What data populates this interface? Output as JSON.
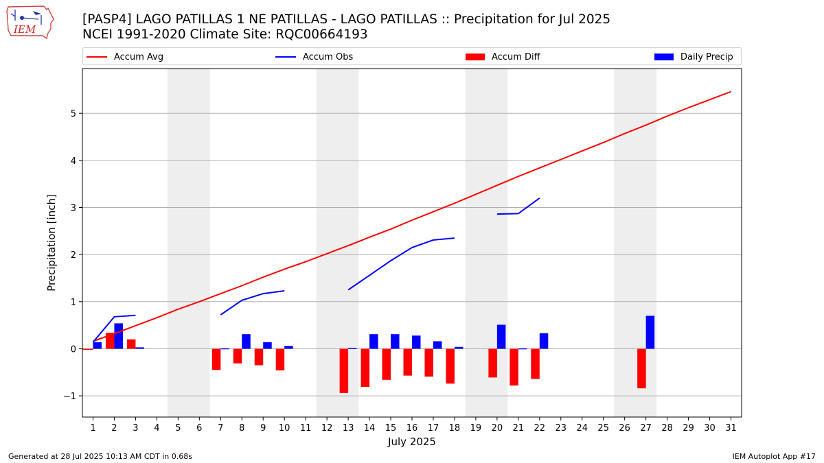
{
  "header": {
    "logo_text": "IEM",
    "title_line1": "[PASP4] LAGO PATILLAS 1 NE PATILLAS - LAGO PATILLAS :: Precipitation for Jul 2025",
    "title_line2": "NCEI 1991-2020 Climate Site: RQC00664193"
  },
  "legend": [
    {
      "label": "Accum Avg",
      "kind": "line",
      "color": "#ff0000"
    },
    {
      "label": "Accum Obs",
      "kind": "line",
      "color": "#0000ff"
    },
    {
      "label": "Accum Diff",
      "kind": "bar",
      "color": "#ff0000"
    },
    {
      "label": "Daily Precip",
      "kind": "bar",
      "color": "#0000ff"
    }
  ],
  "footer": {
    "generated": "Generated at 28 Jul 2025 10:13 AM CDT in 0.68s",
    "app": "IEM Autoplot App #17"
  },
  "chart_data": {
    "type": "bar",
    "xlabel": "July 2025",
    "ylabel": "Precipitation [inch]",
    "xlim": [
      0.5,
      31.5
    ],
    "ylim": [
      -1.45,
      5.95
    ],
    "yticks": [
      -1,
      0,
      1,
      2,
      3,
      4,
      5
    ],
    "yticklabels": [
      "−1",
      "0",
      "1",
      "2",
      "3",
      "4",
      "5"
    ],
    "days": [
      1,
      2,
      3,
      4,
      5,
      6,
      7,
      8,
      9,
      10,
      11,
      12,
      13,
      14,
      15,
      16,
      17,
      18,
      19,
      20,
      21,
      22,
      23,
      24,
      25,
      26,
      27,
      28,
      29,
      30,
      31
    ],
    "grid": "y",
    "legend_position": "top",
    "weekend_shading": [
      [
        4.5,
        6.5
      ],
      [
        11.5,
        13.5
      ],
      [
        18.5,
        20.5
      ],
      [
        25.5,
        27.5
      ]
    ],
    "accum_avg": [
      0.16,
      0.32,
      0.49,
      0.66,
      0.84,
      1.0,
      1.17,
      1.34,
      1.52,
      1.69,
      1.85,
      2.02,
      2.19,
      2.37,
      2.54,
      2.73,
      2.91,
      3.09,
      3.28,
      3.47,
      3.66,
      3.84,
      4.02,
      4.2,
      4.38,
      4.57,
      4.75,
      4.94,
      5.12,
      5.29,
      5.46
    ],
    "accum_obs_segments": [
      [
        [
          1,
          0.14
        ],
        [
          2,
          0.68
        ],
        [
          3,
          0.71
        ]
      ],
      [
        [
          7,
          0.72
        ],
        [
          8,
          1.03
        ],
        [
          9,
          1.17
        ],
        [
          10,
          1.23
        ]
      ],
      [
        [
          13,
          1.25
        ],
        [
          14,
          1.56
        ],
        [
          15,
          1.87
        ],
        [
          16,
          2.15
        ],
        [
          17,
          2.31
        ],
        [
          18,
          2.35
        ]
      ],
      [
        [
          20,
          2.86
        ],
        [
          21,
          2.87
        ],
        [
          22,
          3.2
        ]
      ]
    ],
    "accum_diff": [
      [
        0.5,
        -0.02
      ],
      [
        2,
        0.34
      ],
      [
        3,
        0.2
      ],
      [
        7,
        -0.45
      ],
      [
        8,
        -0.31
      ],
      [
        9,
        -0.35
      ],
      [
        10,
        -0.46
      ],
      [
        13,
        -0.94
      ],
      [
        14,
        -0.81
      ],
      [
        15,
        -0.66
      ],
      [
        16,
        -0.57
      ],
      [
        17,
        -0.59
      ],
      [
        18,
        -0.74
      ],
      [
        20,
        -0.61
      ],
      [
        21,
        -0.78
      ],
      [
        22,
        -0.64
      ],
      [
        27,
        -0.84
      ]
    ],
    "daily_precip": [
      [
        1,
        0.14
      ],
      [
        2,
        0.54
      ],
      [
        3,
        0.03
      ],
      [
        7,
        0.01
      ],
      [
        8,
        0.31
      ],
      [
        9,
        0.14
      ],
      [
        10,
        0.06
      ],
      [
        13,
        0.02
      ],
      [
        14,
        0.31
      ],
      [
        15,
        0.31
      ],
      [
        16,
        0.28
      ],
      [
        17,
        0.16
      ],
      [
        18,
        0.04
      ],
      [
        20,
        0.51
      ],
      [
        21,
        0.01
      ],
      [
        22,
        0.33
      ],
      [
        27,
        0.7
      ]
    ]
  }
}
